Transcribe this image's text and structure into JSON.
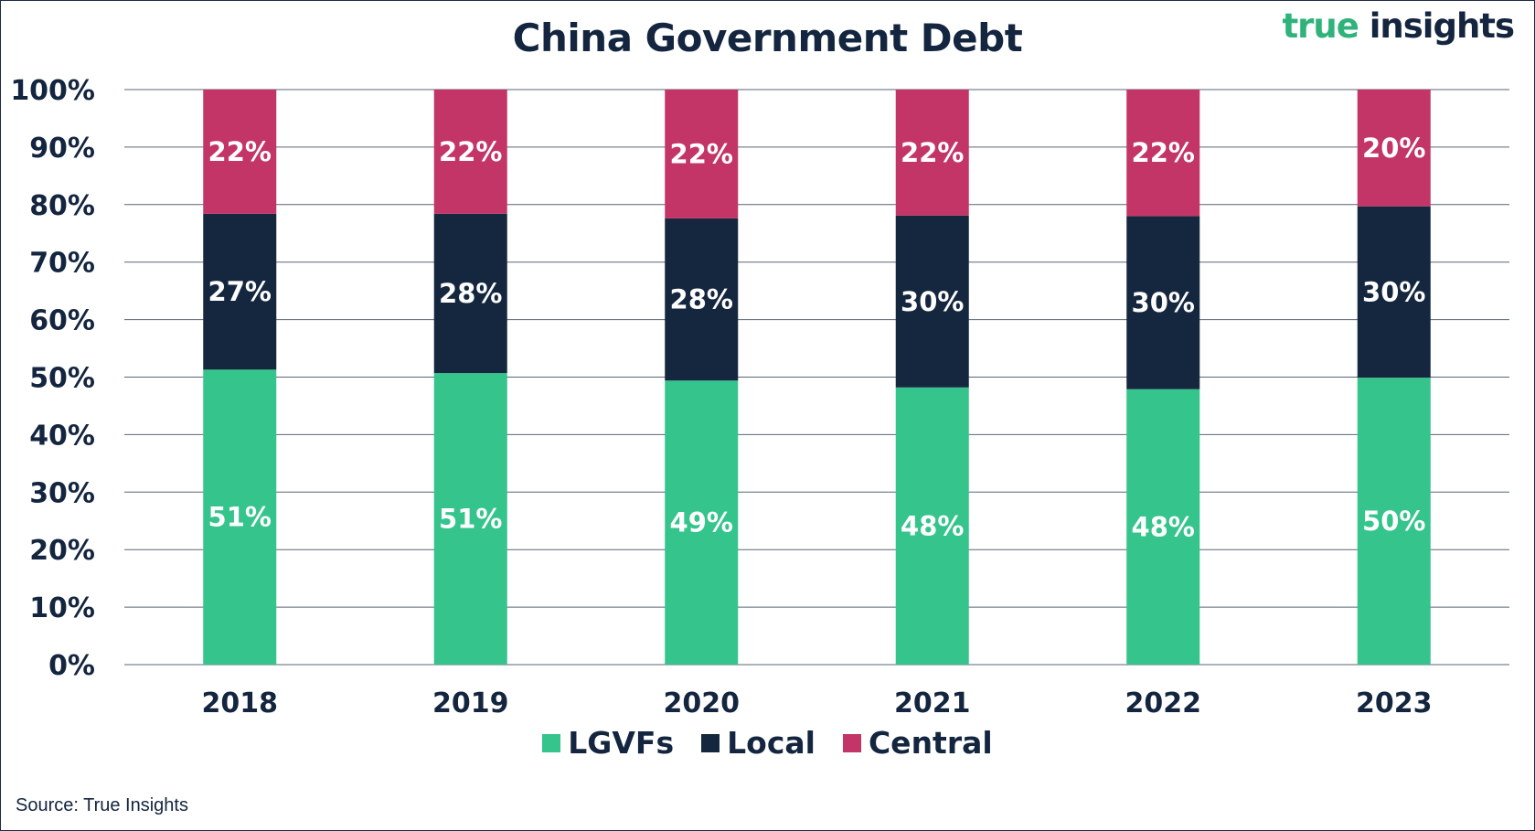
{
  "brand": {
    "part1": "true",
    "part2": "insights"
  },
  "source": "Source: True Insights",
  "colors": {
    "LGVFs": "#35c48c",
    "Local": "#15273f",
    "Central": "#c23566",
    "grid": "#5a6475",
    "text": "#14253f"
  },
  "chart_data": {
    "type": "bar",
    "stacked": true,
    "title": "China Government Debt",
    "xlabel": "",
    "ylabel": "",
    "categories": [
      "2018",
      "2019",
      "2020",
      "2021",
      "2022",
      "2023"
    ],
    "series": [
      {
        "name": "LGVFs",
        "values": [
          51.3,
          50.7,
          49.4,
          48.2,
          47.9,
          49.9
        ],
        "labels": [
          "51%",
          "51%",
          "49%",
          "48%",
          "48%",
          "50%"
        ]
      },
      {
        "name": "Local",
        "values": [
          27.1,
          27.7,
          28.2,
          29.9,
          30.1,
          29.8
        ],
        "labels": [
          "27%",
          "28%",
          "28%",
          "30%",
          "30%",
          "30%"
        ]
      },
      {
        "name": "Central",
        "values": [
          21.6,
          21.6,
          22.4,
          21.9,
          22.0,
          20.3
        ],
        "labels": [
          "22%",
          "22%",
          "22%",
          "22%",
          "22%",
          "20%"
        ]
      }
    ],
    "ylim": [
      0,
      100
    ],
    "yticks": [
      "0%",
      "10%",
      "20%",
      "30%",
      "40%",
      "50%",
      "60%",
      "70%",
      "80%",
      "90%",
      "100%"
    ],
    "grid": true,
    "legend": "bottom"
  }
}
